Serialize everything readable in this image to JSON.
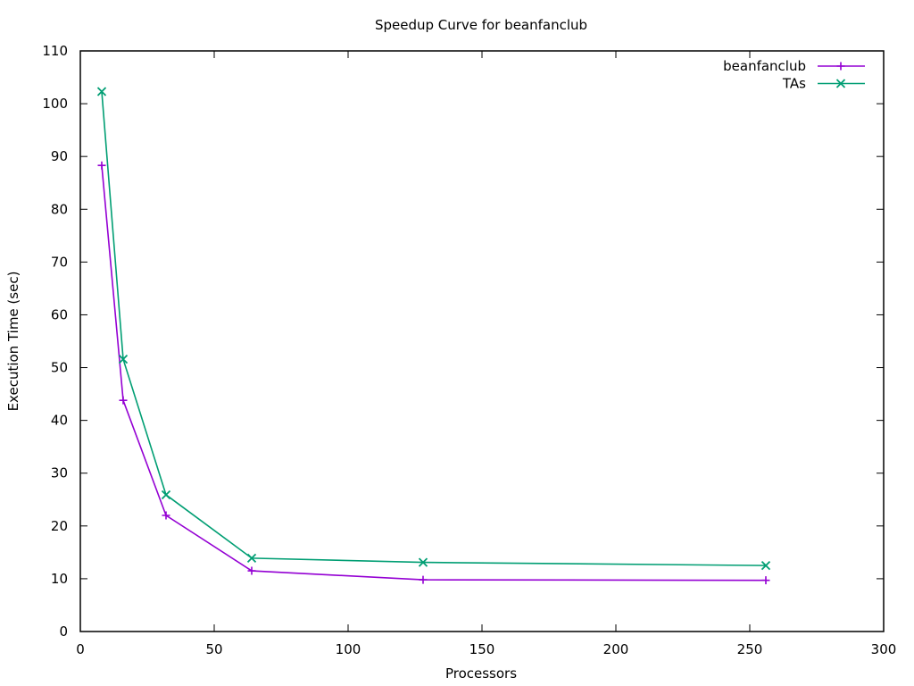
{
  "chart_data": {
    "type": "line",
    "title": "Speedup Curve for beanfanclub",
    "xlabel": "Processors",
    "ylabel": "Execution Time (sec)",
    "xlim": [
      0,
      300
    ],
    "ylim": [
      0,
      110
    ],
    "x_ticks": [
      0,
      50,
      100,
      150,
      200,
      250,
      300
    ],
    "y_ticks": [
      0,
      10,
      20,
      30,
      40,
      50,
      60,
      70,
      80,
      90,
      100,
      110
    ],
    "grid": false,
    "legend_position": "top-right",
    "series": [
      {
        "name": "beanfanclub",
        "color": "#9400d3",
        "marker": "plus",
        "x": [
          8,
          16,
          32,
          64,
          128,
          256
        ],
        "y": [
          88.3,
          43.8,
          22.0,
          11.5,
          9.8,
          9.7
        ]
      },
      {
        "name": "TAs",
        "color": "#009e73",
        "marker": "cross",
        "x": [
          8,
          16,
          32,
          64,
          128,
          256
        ],
        "y": [
          102.3,
          51.6,
          25.9,
          13.9,
          13.1,
          12.5
        ]
      }
    ]
  }
}
